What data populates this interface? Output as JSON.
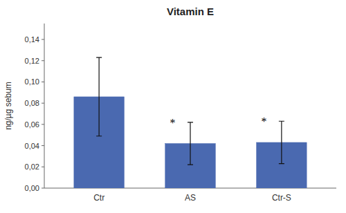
{
  "chart_data": {
    "type": "bar",
    "title": "Vitamin E",
    "categories": [
      "Ctr",
      "AS",
      "Ctr-S"
    ],
    "values": [
      0.086,
      0.042,
      0.043
    ],
    "errors": [
      0.037,
      0.02,
      0.02
    ],
    "significance_labels": [
      null,
      "*",
      "*"
    ],
    "color": "#4a69b0",
    "ylabel": "ng/µg sebum",
    "ylim": [
      0,
      0.155
    ],
    "yticks": [
      {
        "value": 0.0,
        "label": "0,00"
      },
      {
        "value": 0.02,
        "label": "0,02"
      },
      {
        "value": 0.04,
        "label": "0,04"
      },
      {
        "value": 0.06,
        "label": "0,06"
      },
      {
        "value": 0.08,
        "label": "0,08"
      },
      {
        "value": 0.1,
        "label": "0,10"
      },
      {
        "value": 0.12,
        "label": "0,12"
      },
      {
        "value": 0.14,
        "label": "0,14"
      }
    ],
    "grid": false
  }
}
